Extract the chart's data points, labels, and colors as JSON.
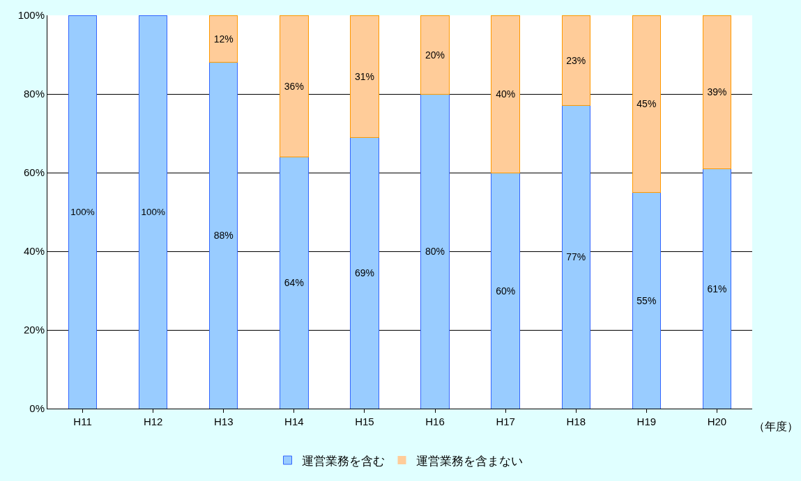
{
  "chart_data": {
    "type": "bar",
    "stacked": true,
    "xlabel": "（年度）",
    "categories": [
      "H11",
      "H12",
      "H13",
      "H14",
      "H15",
      "H16",
      "H17",
      "H18",
      "H19",
      "H20"
    ],
    "series": [
      {
        "name": "運営業務を含む",
        "color": "#99ccff",
        "values": [
          100,
          100,
          88,
          64,
          69,
          80,
          60,
          77,
          55,
          61
        ],
        "value_labels": [
          "100%",
          "100%",
          "88%",
          "64%",
          "69%",
          "80%",
          "60%",
          "77%",
          "55%",
          "61%"
        ]
      },
      {
        "name": "運営業務を含まない",
        "color": "#ffcc99",
        "values": [
          0,
          0,
          12,
          36,
          31,
          20,
          40,
          23,
          45,
          39
        ],
        "value_labels": [
          null,
          null,
          "12%",
          "36%",
          "31%",
          "20%",
          "40%",
          "23%",
          "45%",
          "39%"
        ]
      }
    ],
    "ylim": [
      0,
      100
    ],
    "yticks": [
      {
        "value": 0,
        "label": "0%"
      },
      {
        "value": 20,
        "label": "20%"
      },
      {
        "value": 40,
        "label": "40%"
      },
      {
        "value": 60,
        "label": "60%"
      },
      {
        "value": 80,
        "label": "80%"
      },
      {
        "value": 100,
        "label": "100%"
      }
    ],
    "grid": "y",
    "legend": "bottom"
  }
}
